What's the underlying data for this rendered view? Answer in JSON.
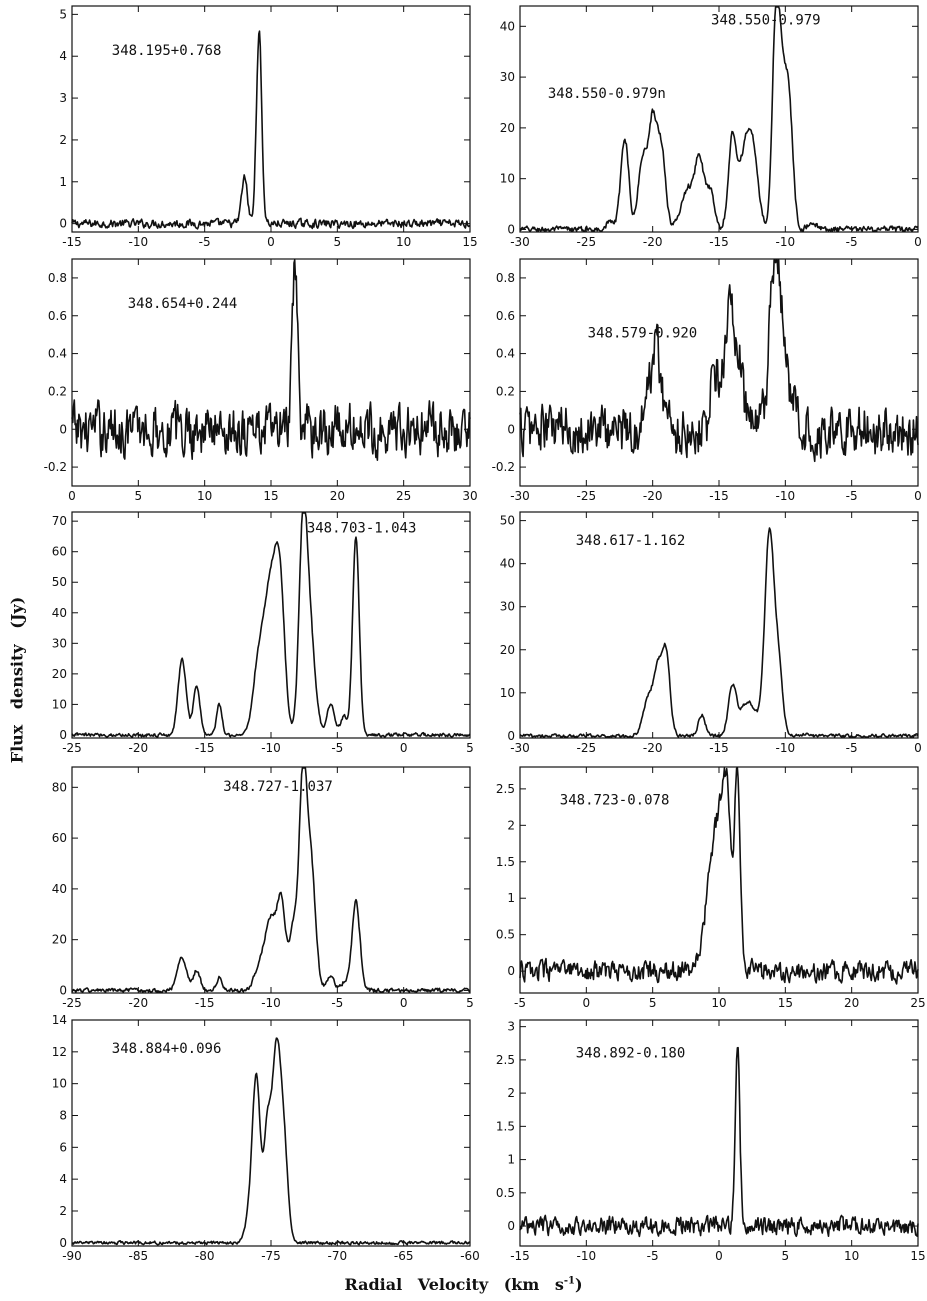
{
  "xlabel": "Radial Velocity (km s",
  "xlabel_sup": "-1",
  "xlabel_close": ")",
  "ylabel": "Flux density (Jy)",
  "chart_data": [
    {
      "type": "line",
      "label": "348.195+0.768",
      "xlim": [
        -15,
        15
      ],
      "ylim": [
        -0.2,
        5.2
      ],
      "xticks": [
        -15,
        -10,
        -5,
        0,
        5,
        10,
        15
      ],
      "yticks": [
        0,
        1,
        2,
        3,
        4,
        5
      ],
      "peaks": [
        [
          -2.0,
          1.1,
          0.22
        ],
        [
          -0.9,
          4.6,
          0.2
        ]
      ],
      "noise": 0.05
    },
    {
      "type": "line",
      "label": "348.550-0.979",
      "label2": "348.550-0.979n",
      "xlim": [
        -30,
        0
      ],
      "ylim": [
        -0.5,
        44
      ],
      "xticks": [
        -30,
        -25,
        -20,
        -15,
        -10,
        -5,
        0
      ],
      "yticks": [
        0,
        10,
        20,
        30,
        40
      ],
      "peaks": [
        [
          -23.2,
          1.5,
          0.3
        ],
        [
          -22.1,
          18,
          0.3
        ],
        [
          -20.8,
          13,
          0.3
        ],
        [
          -20.0,
          22,
          0.35
        ],
        [
          -19.3,
          14,
          0.3
        ],
        [
          -17.7,
          4,
          0.4
        ],
        [
          -17.2,
          6,
          0.35
        ],
        [
          -16.5,
          14,
          0.3
        ],
        [
          -15.7,
          8,
          0.35
        ],
        [
          -14.0,
          17,
          0.3
        ],
        [
          -13.0,
          15,
          0.5
        ],
        [
          -12.4,
          10,
          0.4
        ],
        [
          -10.7,
          41,
          0.28
        ],
        [
          -10.2,
          22,
          0.3
        ],
        [
          -9.7,
          22,
          0.3
        ],
        [
          -8.0,
          1.5,
          0.3
        ]
      ],
      "noise": 0.3
    },
    {
      "type": "line",
      "label": "348.654+0.244",
      "xlim": [
        0,
        30
      ],
      "ylim": [
        -0.3,
        0.9
      ],
      "xticks": [
        0,
        5,
        10,
        15,
        20,
        25,
        30
      ],
      "yticks": [
        -0.2,
        0.0,
        0.2,
        0.4,
        0.6,
        0.8
      ],
      "peaks": [
        [
          16.8,
          0.82,
          0.2
        ]
      ],
      "noise": 0.07
    },
    {
      "type": "line",
      "label": "348.579-0.920",
      "xlim": [
        -30,
        0
      ],
      "ylim": [
        -0.3,
        0.9
      ],
      "xticks": [
        -30,
        -25,
        -20,
        -15,
        -10,
        -5,
        0
      ],
      "yticks": [
        -0.2,
        0.0,
        0.2,
        0.4,
        0.6,
        0.8
      ],
      "peaks": [
        [
          -19.8,
          0.45,
          0.45
        ],
        [
          -15.3,
          0.3,
          0.3
        ],
        [
          -14.3,
          0.55,
          0.35
        ],
        [
          -13.6,
          0.35,
          0.4
        ],
        [
          -10.8,
          0.82,
          0.4
        ],
        [
          -10.0,
          0.3,
          0.5
        ]
      ],
      "noise": 0.07
    },
    {
      "type": "line",
      "label": "348.703-1.043",
      "xlim": [
        -25,
        5
      ],
      "ylim": [
        -1,
        73
      ],
      "xticks": [
        -25,
        -20,
        -15,
        -10,
        -5,
        0,
        5
      ],
      "yticks": [
        0,
        10,
        20,
        30,
        40,
        50,
        60,
        70
      ],
      "peaks": [
        [
          -16.7,
          25,
          0.3
        ],
        [
          -15.6,
          16,
          0.25
        ],
        [
          -13.9,
          10,
          0.2
        ],
        [
          -11.0,
          18,
          0.4
        ],
        [
          -10.0,
          50,
          0.55
        ],
        [
          -9.3,
          35,
          0.35
        ],
        [
          -7.6,
          60,
          0.3
        ],
        [
          -7.1,
          35,
          0.4
        ],
        [
          -5.5,
          10,
          0.3
        ],
        [
          -4.5,
          6,
          0.25
        ],
        [
          -3.6,
          65,
          0.25
        ]
      ],
      "noise": 0.3
    },
    {
      "type": "line",
      "label": "348.617-1.162",
      "xlim": [
        -30,
        0
      ],
      "ylim": [
        -0.5,
        52
      ],
      "xticks": [
        -30,
        -25,
        -20,
        -15,
        -10,
        -5,
        0
      ],
      "yticks": [
        0,
        10,
        20,
        30,
        40,
        50
      ],
      "peaks": [
        [
          -20.3,
          9,
          0.4
        ],
        [
          -19.6,
          13,
          0.3
        ],
        [
          -19.0,
          19,
          0.3
        ],
        [
          -16.3,
          5,
          0.25
        ],
        [
          -14.0,
          11,
          0.3
        ],
        [
          -12.8,
          8,
          0.6
        ],
        [
          -11.2,
          47,
          0.35
        ],
        [
          -10.5,
          15,
          0.3
        ],
        [
          -8.5,
          0.5,
          0.3
        ]
      ],
      "noise": 0.2
    },
    {
      "type": "line",
      "label": "348.727-1.037",
      "xlim": [
        -25,
        5
      ],
      "ylim": [
        -1,
        88
      ],
      "xticks": [
        -25,
        -20,
        -15,
        -10,
        -5,
        0,
        5
      ],
      "yticks": [
        0,
        20,
        40,
        60,
        80
      ],
      "peaks": [
        [
          -16.7,
          13,
          0.35
        ],
        [
          -15.6,
          8,
          0.25
        ],
        [
          -13.9,
          5,
          0.2
        ],
        [
          -10.9,
          8,
          0.4
        ],
        [
          -10.0,
          28,
          0.45
        ],
        [
          -9.2,
          32,
          0.3
        ],
        [
          -8.3,
          25,
          0.3
        ],
        [
          -7.6,
          80,
          0.28
        ],
        [
          -7.0,
          50,
          0.35
        ],
        [
          -5.5,
          5,
          0.3
        ],
        [
          -4.5,
          3,
          0.25
        ],
        [
          -3.6,
          35,
          0.3
        ]
      ],
      "noise": 0.4
    },
    {
      "type": "line",
      "label": "348.723-0.078",
      "xlim": [
        -5,
        25
      ],
      "ylim": [
        -0.3,
        2.8
      ],
      "xticks": [
        -5,
        0,
        5,
        10,
        15,
        20,
        25
      ],
      "yticks": [
        0.0,
        0.5,
        1.0,
        1.5,
        2.0,
        2.5
      ],
      "peaks": [
        [
          9.2,
          0.7,
          0.4
        ],
        [
          9.9,
          1.3,
          0.4
        ],
        [
          10.6,
          1.9,
          0.35
        ],
        [
          11.4,
          2.5,
          0.2
        ],
        [
          10.3,
          0.5,
          0.9
        ]
      ],
      "noise": 0.07
    },
    {
      "type": "line",
      "label": "348.884+0.096",
      "xlim": [
        -90,
        -60
      ],
      "ylim": [
        -0.2,
        14
      ],
      "xticks": [
        -90,
        -85,
        -80,
        -75,
        -70,
        -65,
        -60
      ],
      "yticks": [
        0,
        2,
        4,
        6,
        8,
        10,
        12,
        14
      ],
      "peaks": [
        [
          -76.6,
          1.5,
          0.35
        ],
        [
          -76.1,
          10,
          0.3
        ],
        [
          -75.3,
          6.3,
          0.25
        ],
        [
          -74.6,
          12,
          0.35
        ],
        [
          -74.0,
          5,
          0.3
        ]
      ],
      "noise": 0.05
    },
    {
      "type": "line",
      "label": "348.892-0.180",
      "xlim": [
        -15,
        15
      ],
      "ylim": [
        -0.3,
        3.1
      ],
      "xticks": [
        -15,
        -10,
        -5,
        0,
        5,
        10,
        15
      ],
      "yticks": [
        0.0,
        0.5,
        1.0,
        1.5,
        2.0,
        2.5,
        3.0
      ],
      "peaks": [
        [
          1.4,
          2.65,
          0.17
        ]
      ],
      "noise": 0.07
    }
  ]
}
